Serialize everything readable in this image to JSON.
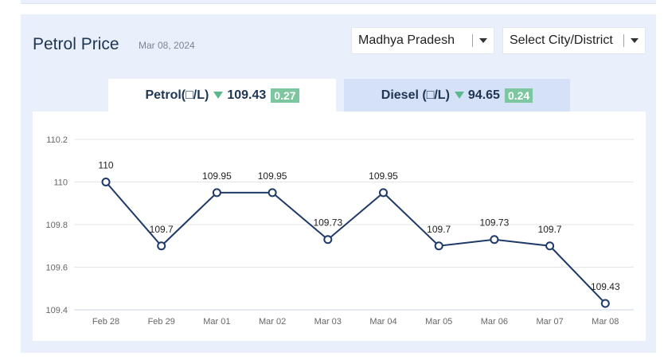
{
  "header": {
    "title": "Petrol Price",
    "date": "Mar 08, 2024"
  },
  "filters": {
    "state": "Madhya Pradesh",
    "city": "Select City/District"
  },
  "tabs": [
    {
      "label": "Petrol(□/L)",
      "price": "109.43",
      "change": "0.27",
      "active": true
    },
    {
      "label": "Diesel (□/L)",
      "price": "94.65",
      "change": "0.24",
      "active": false
    }
  ],
  "colors": {
    "line": "#1e3a68",
    "accent_green": "#7cc79f",
    "arrow_green": "#5bb98b"
  },
  "chart_data": {
    "type": "line",
    "categories": [
      "Feb 28",
      "Feb 29",
      "Mar 01",
      "Mar 02",
      "Mar 03",
      "Mar 04",
      "Mar 05",
      "Mar 06",
      "Mar 07",
      "Mar 08"
    ],
    "values": [
      110,
      109.7,
      109.95,
      109.95,
      109.73,
      109.95,
      109.7,
      109.73,
      109.7,
      109.43
    ],
    "data_labels": [
      "110",
      "109.7",
      "109.95",
      "109.95",
      "109.73",
      "109.95",
      "109.7",
      "109.73",
      "109.7",
      "109.43"
    ],
    "yticks": [
      110.2,
      110,
      109.8,
      109.6,
      109.4
    ],
    "ytick_labels": [
      "110.2",
      "110",
      "109.8",
      "109.6",
      "109.4"
    ],
    "ylim": [
      109.4,
      110.2
    ],
    "grid": true,
    "legend": "none"
  }
}
